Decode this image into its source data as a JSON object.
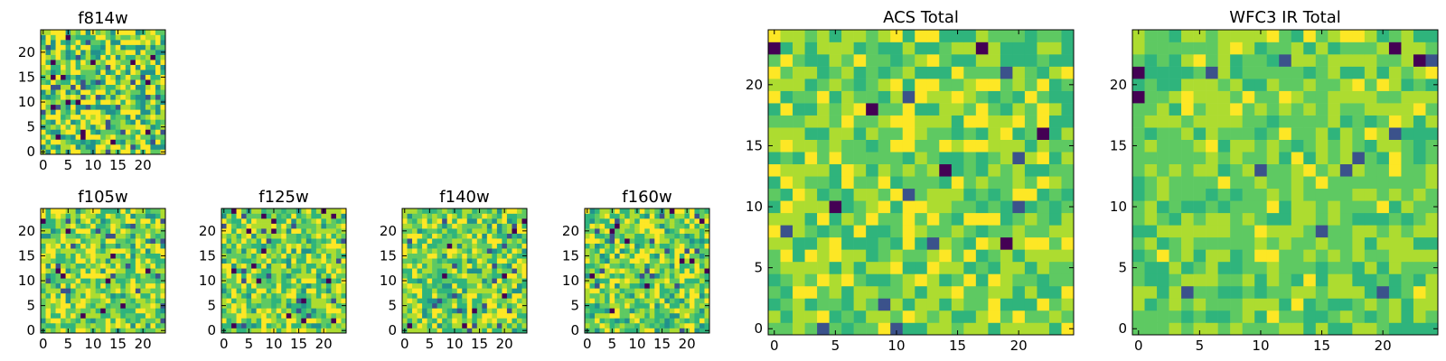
{
  "figure": {
    "background": "#ffffff"
  },
  "colormap": [
    "#440154",
    "#3b528b",
    "#21918c",
    "#2fb47c",
    "#5ec962",
    "#addc30",
    "#fde725"
  ],
  "chart_data": [
    {
      "type": "heatmap",
      "id": "f814w",
      "title": "f814w",
      "size": 25,
      "xticks": [
        0,
        5,
        10,
        15,
        20
      ],
      "yticks": [
        0,
        5,
        10,
        15,
        20
      ],
      "seed": 814,
      "noise": 0.95,
      "dark_spots": 0.05
    },
    {
      "type": "heatmap",
      "id": "f105w",
      "title": "f105w",
      "size": 25,
      "xticks": [
        0,
        5,
        10,
        15,
        20
      ],
      "yticks": [
        0,
        5,
        10,
        15,
        20
      ],
      "seed": 105,
      "noise": 0.7,
      "dark_spots": 0.04
    },
    {
      "type": "heatmap",
      "id": "f125w",
      "title": "f125w",
      "size": 25,
      "xticks": [
        0,
        5,
        10,
        15,
        20
      ],
      "yticks": [
        0,
        5,
        10,
        15,
        20
      ],
      "seed": 125,
      "noise": 0.7,
      "dark_spots": 0.04
    },
    {
      "type": "heatmap",
      "id": "f140w",
      "title": "f140w",
      "size": 25,
      "xticks": [
        0,
        5,
        10,
        15,
        20
      ],
      "yticks": [
        0,
        5,
        10,
        15,
        20
      ],
      "seed": 140,
      "noise": 0.7,
      "dark_spots": 0.04
    },
    {
      "type": "heatmap",
      "id": "f160w",
      "title": "f160w",
      "size": 25,
      "xticks": [
        0,
        5,
        10,
        15,
        20
      ],
      "yticks": [
        0,
        5,
        10,
        15,
        20
      ],
      "seed": 160,
      "noise": 0.7,
      "dark_spots": 0.04
    },
    {
      "type": "heatmap",
      "id": "acs-total",
      "title": "ACS Total",
      "size": 25,
      "xticks": [
        0,
        5,
        10,
        15,
        20
      ],
      "yticks": [
        0,
        5,
        10,
        15,
        20
      ],
      "seed": 77,
      "noise": 0.55,
      "dark_spots": 0.025
    },
    {
      "type": "heatmap",
      "id": "wfc3-ir-total",
      "title": "WFC3 IR Total",
      "size": 25,
      "xticks": [
        0,
        5,
        10,
        15,
        20
      ],
      "yticks": [
        0,
        5,
        10,
        15,
        20
      ],
      "seed": 33,
      "noise": 0.45,
      "dark_spots": 0.02
    }
  ]
}
